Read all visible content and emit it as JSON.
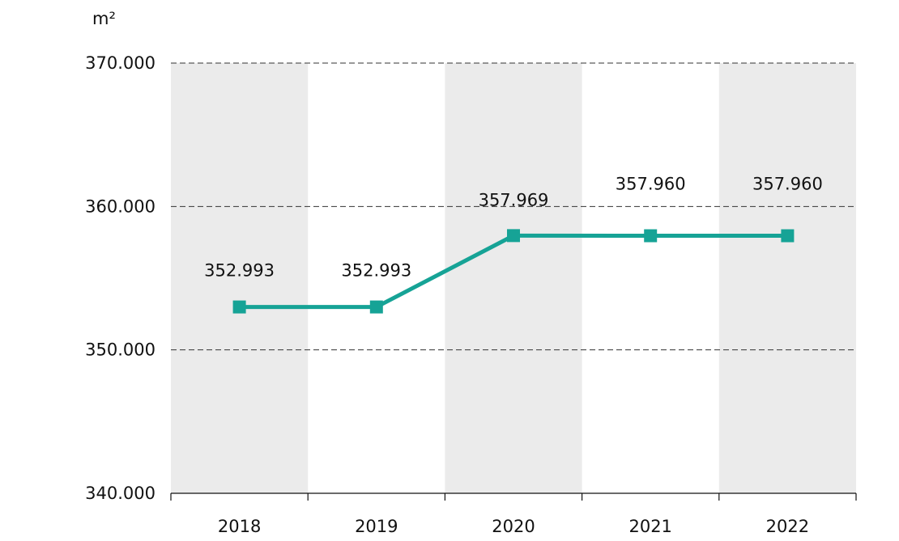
{
  "chart_data": {
    "type": "line",
    "unit": "m²",
    "categories": [
      "2018",
      "2019",
      "2020",
      "2021",
      "2022"
    ],
    "series": [
      {
        "values": [
          352993,
          352993,
          357969,
          357960,
          357960
        ],
        "data_labels": [
          "352.993",
          "352.993",
          "357.969",
          "357.960",
          "357.960"
        ],
        "color": "#16a396"
      }
    ],
    "ylim": [
      340000,
      370000
    ],
    "yticks": [
      340000,
      350000,
      360000,
      370000
    ],
    "ytick_labels": [
      "340.000",
      "350.000",
      "360.000",
      "370.000"
    ],
    "grid": "dashed horizontal",
    "band_color": "#ebebeb"
  }
}
